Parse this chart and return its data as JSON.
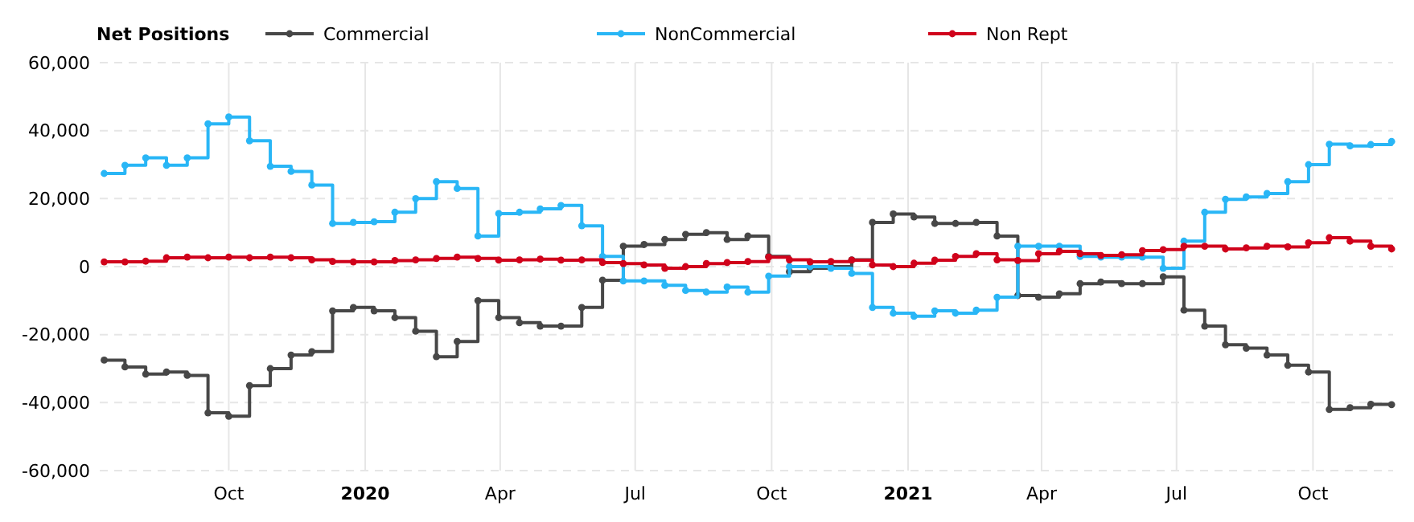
{
  "chart_data": {
    "type": "step",
    "legend_title": "Net Positions",
    "legend": "top left",
    "grid": true,
    "marker": "circle",
    "line_style": "solid",
    "x": [
      "2019-07-09",
      "2019-07-23",
      "2019-08-06",
      "2019-08-20",
      "2019-09-03",
      "2019-09-17",
      "2019-10-01",
      "2019-10-15",
      "2019-10-29",
      "2019-11-12",
      "2019-11-26",
      "2019-12-10",
      "2019-12-24",
      "2020-01-07",
      "2020-01-21",
      "2020-02-04",
      "2020-02-18",
      "2020-03-03",
      "2020-03-17",
      "2020-03-31",
      "2020-04-14",
      "2020-04-28",
      "2020-05-12",
      "2020-05-26",
      "2020-06-09",
      "2020-06-23",
      "2020-07-07",
      "2020-07-21",
      "2020-08-04",
      "2020-08-18",
      "2020-09-01",
      "2020-09-15",
      "2020-09-29",
      "2020-10-13",
      "2020-10-27",
      "2020-11-10",
      "2020-11-24",
      "2020-12-08",
      "2020-12-22",
      "2021-01-05",
      "2021-01-19",
      "2021-02-02",
      "2021-02-16",
      "2021-03-02",
      "2021-03-16",
      "2021-03-30",
      "2021-04-13",
      "2021-04-27",
      "2021-05-11",
      "2021-05-25",
      "2021-06-08",
      "2021-06-22",
      "2021-07-06",
      "2021-07-20",
      "2021-08-03",
      "2021-08-17",
      "2021-08-31",
      "2021-09-14",
      "2021-09-28",
      "2021-10-12",
      "2021-10-26",
      "2021-11-09",
      "2021-11-23"
    ],
    "xlim": [
      "2019-07-06",
      "2021-11-24"
    ],
    "xticks": [
      {
        "value": "2019-10-01",
        "label": "Oct"
      },
      {
        "value": "2020-01-01",
        "label": "2020"
      },
      {
        "value": "2020-04-01",
        "label": "Apr"
      },
      {
        "value": "2020-07-01",
        "label": "Jul"
      },
      {
        "value": "2020-10-01",
        "label": "Oct"
      },
      {
        "value": "2021-01-01",
        "label": "2021"
      },
      {
        "value": "2021-04-01",
        "label": "Apr"
      },
      {
        "value": "2021-07-01",
        "label": "Jul"
      },
      {
        "value": "2021-10-01",
        "label": "Oct"
      }
    ],
    "ylim": [
      -60000,
      60000
    ],
    "yticks": [
      {
        "value": -60000,
        "label": "-60,000"
      },
      {
        "value": -40000,
        "label": "-40,000"
      },
      {
        "value": -20000,
        "label": "-20,000"
      },
      {
        "value": 0,
        "label": "0"
      },
      {
        "value": 20000,
        "label": "20,000"
      },
      {
        "value": 40000,
        "label": "40,000"
      },
      {
        "value": 60000,
        "label": "60,000"
      }
    ],
    "series": [
      {
        "name": "Commercial",
        "color": "#474747",
        "values": [
          -27500,
          -29500,
          -31600,
          -31000,
          -32000,
          -43000,
          -44000,
          -35000,
          -30000,
          -26000,
          -25000,
          -13000,
          -12000,
          -13000,
          -15000,
          -19000,
          -26500,
          -22000,
          -10000,
          -15000,
          -16500,
          -17500,
          -17500,
          -12000,
          -4000,
          6000,
          6500,
          8000,
          9500,
          10000,
          8000,
          9000,
          3000,
          -1500,
          -500,
          0,
          2000,
          13000,
          15500,
          14600,
          12700,
          12700,
          13000,
          9000,
          -8500,
          -9000,
          -8000,
          -5000,
          -4500,
          -5000,
          -5000,
          -3000,
          -12800,
          -17500,
          -23000,
          -24000,
          -26000,
          -29000,
          -31000,
          -42000,
          -41500,
          -40500,
          -40600
        ]
      },
      {
        "name": "NonCommercial",
        "color": "#29b6f6",
        "values": [
          27400,
          29800,
          32000,
          29800,
          32000,
          42000,
          44000,
          37000,
          29500,
          28000,
          24000,
          12700,
          13000,
          13200,
          16000,
          20000,
          25000,
          23000,
          9000,
          15600,
          16000,
          17000,
          18000,
          12000,
          3000,
          -4200,
          -4200,
          -5500,
          -7000,
          -7500,
          -6000,
          -7500,
          -2800,
          0,
          0,
          -500,
          -2000,
          -12000,
          -13700,
          -14600,
          -13000,
          -13700,
          -12800,
          -9000,
          6000,
          6000,
          6000,
          3000,
          2800,
          2800,
          2800,
          -500,
          7500,
          16000,
          19800,
          20500,
          21500,
          25000,
          30000,
          36000,
          35500,
          35900,
          36800
        ]
      },
      {
        "name": "Non Rept",
        "color": "#d0021b",
        "values": [
          1400,
          1400,
          1600,
          2600,
          2800,
          2600,
          2800,
          2600,
          2800,
          2600,
          2000,
          1500,
          1400,
          1400,
          1800,
          2000,
          2400,
          2800,
          2400,
          1900,
          2000,
          2200,
          1900,
          2000,
          1200,
          900,
          500,
          -500,
          0,
          900,
          1200,
          1500,
          2800,
          2000,
          1400,
          1500,
          1900,
          500,
          0,
          1000,
          1900,
          3000,
          3800,
          2000,
          1800,
          3800,
          4500,
          3800,
          3300,
          3500,
          4700,
          5000,
          6000,
          6000,
          5200,
          5500,
          6000,
          5800,
          7000,
          8500,
          7500,
          6000,
          5200
        ]
      }
    ]
  }
}
